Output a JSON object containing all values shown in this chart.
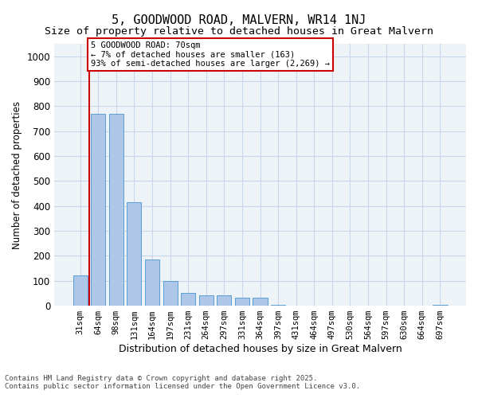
{
  "title1": "5, GOODWOOD ROAD, MALVERN, WR14 1NJ",
  "title2": "Size of property relative to detached houses in Great Malvern",
  "xlabel": "Distribution of detached houses by size in Great Malvern",
  "ylabel": "Number of detached properties",
  "bar_color": "#aec6e8",
  "bar_edgecolor": "#5a9fd4",
  "grid_color": "#c8d8ea",
  "background_color": "#eef3f8",
  "categories": [
    "31sqm",
    "64sqm",
    "98sqm",
    "131sqm",
    "164sqm",
    "197sqm",
    "231sqm",
    "264sqm",
    "297sqm",
    "331sqm",
    "364sqm",
    "397sqm",
    "431sqm",
    "464sqm",
    "497sqm",
    "530sqm",
    "564sqm",
    "597sqm",
    "630sqm",
    "664sqm",
    "697sqm"
  ],
  "values": [
    120,
    770,
    770,
    415,
    185,
    100,
    50,
    42,
    42,
    32,
    32,
    2,
    0,
    0,
    0,
    0,
    0,
    0,
    0,
    0,
    2
  ],
  "ylim": [
    0,
    1050
  ],
  "yticks": [
    0,
    100,
    200,
    300,
    400,
    500,
    600,
    700,
    800,
    900,
    1000
  ],
  "vline_x": 1,
  "annotation_text": "5 GOODWOOD ROAD: 70sqm\n← 7% of detached houses are smaller (163)\n93% of semi-detached houses are larger (2,269) →",
  "annotation_box_color": "#ffffff",
  "annotation_border_color": "#cc0000",
  "footer1": "Contains HM Land Registry data © Crown copyright and database right 2025.",
  "footer2": "Contains public sector information licensed under the Open Government Licence v3.0."
}
